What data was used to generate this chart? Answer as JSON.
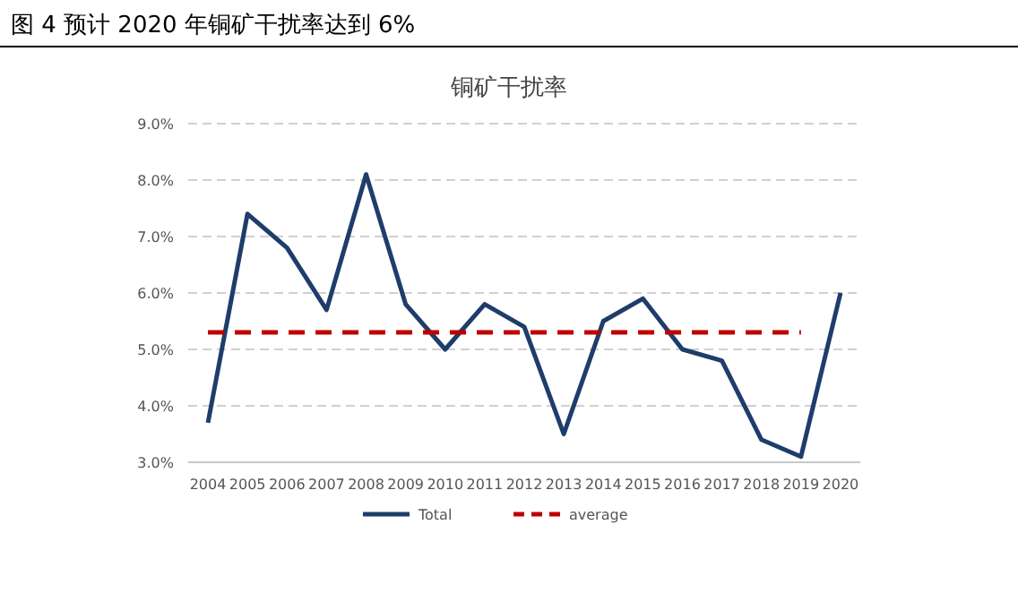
{
  "chart_data": {
    "type": "line",
    "title": "图 4 预计 2020 年铜矿干扰率达到 6%",
    "subtitle": "铜矿干扰率",
    "categories": [
      "2004",
      "2005",
      "2006",
      "2007",
      "2008",
      "2009",
      "2010",
      "2011",
      "2012",
      "2013",
      "2014",
      "2015",
      "2016",
      "2017",
      "2018",
      "2019",
      "2020"
    ],
    "series": [
      {
        "name": "Total",
        "color": "#1f3d6b",
        "line_style": "solid",
        "values": [
          3.7,
          7.4,
          6.8,
          5.7,
          8.1,
          5.8,
          5.0,
          5.8,
          5.4,
          3.5,
          5.5,
          5.9,
          5.0,
          4.8,
          3.4,
          3.1,
          6.0
        ]
      },
      {
        "name": "average",
        "color": "#c00000",
        "line_style": "dashed",
        "values": [
          5.3,
          5.3,
          5.3,
          5.3,
          5.3,
          5.3,
          5.3,
          5.3,
          5.3,
          5.3,
          5.3,
          5.3,
          5.3,
          5.3,
          5.3,
          5.3,
          null
        ]
      }
    ],
    "ylim": [
      3,
      9
    ],
    "yticks": [
      {
        "value": 3,
        "label": "3.0%"
      },
      {
        "value": 4,
        "label": "4.0%"
      },
      {
        "value": 5,
        "label": "5.0%"
      },
      {
        "value": 6,
        "label": "6.0%"
      },
      {
        "value": 7,
        "label": "7.0%"
      },
      {
        "value": 8,
        "label": "8.0%"
      },
      {
        "value": 9,
        "label": "9.0%"
      }
    ],
    "grid": "y",
    "legend": "bottom",
    "marker": "none"
  }
}
